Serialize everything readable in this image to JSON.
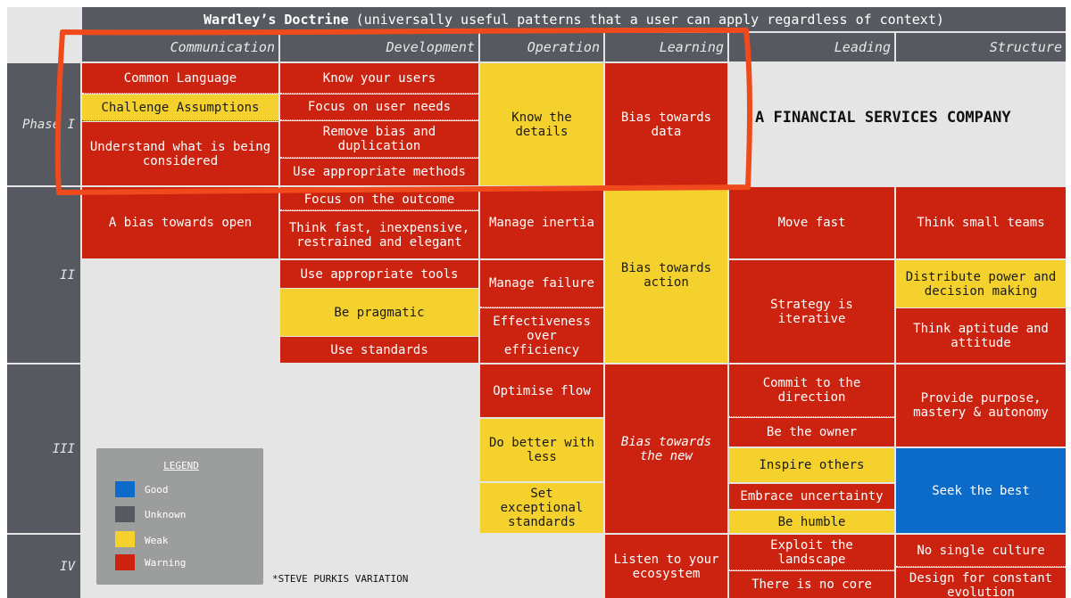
{
  "title": {
    "bold": "Wardley’s Doctrine",
    "rest": "(universally useful patterns that a user can apply regardless of context)"
  },
  "columns": [
    "Communication",
    "Development",
    "Operation",
    "Learning",
    "Leading",
    "Structure"
  ],
  "phases": [
    "Phase I",
    "II",
    "III",
    "IV"
  ],
  "company_label": "A FINANCIAL SERVICES COMPANY",
  "cells": {
    "common_language": "Common Language",
    "challenge_assumptions": "Challenge Assumptions",
    "understand_considered": "Understand what is being considered",
    "know_your_users": "Know your users",
    "focus_user_needs": "Focus on user needs",
    "remove_bias": "Remove bias and duplication",
    "use_appropriate_methods": "Use appropriate methods",
    "know_the_details": "Know the details",
    "bias_towards_data": "Bias towards data",
    "bias_towards_open": "A bias towards open",
    "focus_outcome": "Focus on the outcome",
    "think_fast": "Think fast, inexpensive, restrained and elegant",
    "use_appropriate_tools": "Use appropriate tools",
    "be_pragmatic": "Be pragmatic",
    "use_standards": "Use standards",
    "manage_inertia": "Manage inertia",
    "manage_failure": "Manage failure",
    "effectiveness": "Effectiveness over efficiency",
    "bias_towards_action": "Bias towards action",
    "move_fast": "Move fast",
    "strategy_iterative": "Strategy is iterative",
    "think_small_teams": "Think small teams",
    "distribute_power": "Distribute power and decision making",
    "think_aptitude": "Think aptitude and attitude",
    "optimise_flow": "Optimise flow",
    "do_better": "Do better with less",
    "set_exceptional": "Set exceptional standards",
    "bias_towards_new": "Bias towards the new",
    "commit_direction": "Commit to the direction",
    "be_the_owner": "Be the owner",
    "inspire_others": "Inspire others",
    "embrace_uncertainty": "Embrace uncertainty",
    "be_humble": "Be humble",
    "provide_purpose": "Provide purpose, mastery & autonomy",
    "seek_the_best": "Seek the best",
    "listen_ecosystem": "Listen to your ecosystem",
    "exploit_landscape": "Exploit the landscape",
    "no_core": "There is no core",
    "no_single_culture": "No single culture",
    "design_constant": "Design for constant evolution"
  },
  "legend": {
    "title": "LEGEND",
    "items": [
      {
        "label": "Good",
        "color": "#0c6bc9"
      },
      {
        "label": "Unknown",
        "color": "#56595f"
      },
      {
        "label": "Weak",
        "color": "#f5d12e"
      },
      {
        "label": "Warning",
        "color": "#cc2310"
      }
    ]
  },
  "footnote": "*STEVE PURKIS VARIATION",
  "annotation_color": "#f04a1c",
  "colors": {
    "good": "#0c6bc9",
    "unknown": "#56595f",
    "weak": "#f5d12e",
    "warning": "#cc2310"
  }
}
